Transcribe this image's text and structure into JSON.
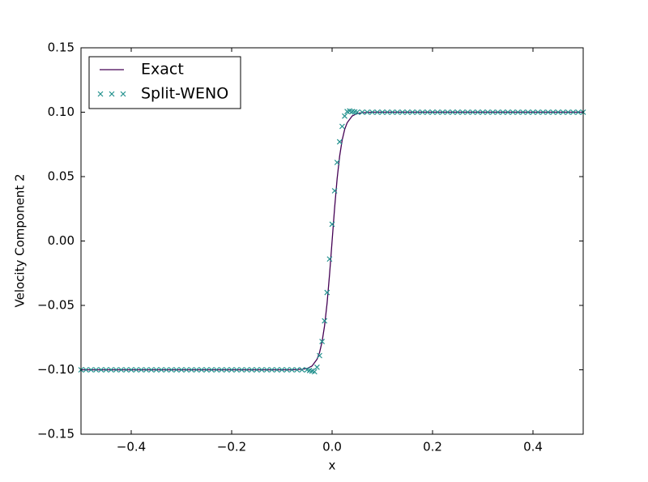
{
  "chart_data": {
    "type": "line",
    "xlabel": "x",
    "ylabel": "Velocity Component 2",
    "xlim": [
      -0.5,
      0.5
    ],
    "ylim": [
      -0.15,
      0.15
    ],
    "xticks": [
      {
        "value": -0.4,
        "label": "−0.4"
      },
      {
        "value": -0.2,
        "label": "−0.2"
      },
      {
        "value": 0,
        "label": "0.0"
      },
      {
        "value": 0.2,
        "label": "0.2"
      },
      {
        "value": 0.4,
        "label": "0.4"
      }
    ],
    "yticks": [
      {
        "value": -0.15,
        "label": "−0.15"
      },
      {
        "value": -0.1,
        "label": "−0.10"
      },
      {
        "value": -0.05,
        "label": "−0.05"
      },
      {
        "value": 0,
        "label": "0.00"
      },
      {
        "value": 0.05,
        "label": "0.05"
      },
      {
        "value": 0.1,
        "label": "0.10"
      },
      {
        "value": 0.15,
        "label": "0.15"
      }
    ],
    "grid": false,
    "legend": "upper left",
    "series": [
      {
        "name": "Exact",
        "type": "line",
        "color": "#440154",
        "x": [
          -0.5,
          -0.1,
          -0.08,
          -0.06,
          -0.05,
          -0.04,
          -0.03,
          -0.025,
          -0.02,
          -0.015,
          -0.01,
          -0.005,
          0,
          0.005,
          0.01,
          0.015,
          0.02,
          0.025,
          0.03,
          0.04,
          0.05,
          0.06,
          0.08,
          0.1,
          0.5
        ],
        "values": [
          -0.1,
          -0.1,
          -0.1,
          -0.0996,
          -0.099,
          -0.0971,
          -0.0918,
          -0.0866,
          -0.0783,
          -0.0658,
          -0.0483,
          -0.0257,
          0,
          0.0257,
          0.0483,
          0.0658,
          0.0783,
          0.0866,
          0.0918,
          0.0971,
          0.099,
          0.0996,
          0.1,
          0.1,
          0.1
        ]
      },
      {
        "name": "Split-WENO",
        "type": "scatter",
        "color": "#21908d",
        "x": [
          -0.5,
          -0.49,
          -0.48,
          -0.47,
          -0.46,
          -0.45,
          -0.44,
          -0.43,
          -0.42,
          -0.41,
          -0.4,
          -0.39,
          -0.38,
          -0.37,
          -0.36,
          -0.35,
          -0.34,
          -0.33,
          -0.32,
          -0.31,
          -0.3,
          -0.29,
          -0.28,
          -0.27,
          -0.26,
          -0.25,
          -0.24,
          -0.23,
          -0.22,
          -0.21,
          -0.2,
          -0.19,
          -0.18,
          -0.17,
          -0.16,
          -0.15,
          -0.14,
          -0.13,
          -0.12,
          -0.11,
          -0.1,
          -0.09,
          -0.08,
          -0.07,
          -0.06,
          -0.05,
          -0.045,
          -0.04,
          -0.035,
          -0.03,
          -0.025,
          -0.02,
          -0.015,
          -0.01,
          -0.005,
          0,
          0.005,
          0.01,
          0.015,
          0.02,
          0.025,
          0.03,
          0.035,
          0.04,
          0.045,
          0.05,
          0.06,
          0.07,
          0.08,
          0.09,
          0.1,
          0.11,
          0.12,
          0.13,
          0.14,
          0.15,
          0.16,
          0.17,
          0.18,
          0.19,
          0.2,
          0.21,
          0.22,
          0.23,
          0.24,
          0.25,
          0.26,
          0.27,
          0.28,
          0.29,
          0.3,
          0.31,
          0.32,
          0.33,
          0.34,
          0.35,
          0.36,
          0.37,
          0.38,
          0.39,
          0.4,
          0.41,
          0.42,
          0.43,
          0.44,
          0.45,
          0.46,
          0.47,
          0.48,
          0.49,
          0.5
        ],
        "values": [
          -0.1,
          -0.1,
          -0.1,
          -0.1,
          -0.1,
          -0.1,
          -0.1,
          -0.1,
          -0.1,
          -0.1,
          -0.1,
          -0.1,
          -0.1,
          -0.1,
          -0.1,
          -0.1,
          -0.1,
          -0.1,
          -0.1,
          -0.1,
          -0.1,
          -0.1,
          -0.1,
          -0.1,
          -0.1,
          -0.1,
          -0.1,
          -0.1,
          -0.1,
          -0.1,
          -0.1,
          -0.1,
          -0.1,
          -0.1,
          -0.1,
          -0.1,
          -0.1,
          -0.1,
          -0.1,
          -0.1,
          -0.1,
          -0.1,
          -0.1,
          -0.1,
          -0.1,
          -0.1,
          -0.1005,
          -0.101,
          -0.1015,
          -0.098,
          -0.089,
          -0.078,
          -0.062,
          -0.04,
          -0.014,
          0.013,
          0.039,
          0.061,
          0.077,
          0.089,
          0.097,
          0.1005,
          0.101,
          0.1005,
          0.1002,
          0.1,
          0.1,
          0.1,
          0.1,
          0.1,
          0.1,
          0.1,
          0.1,
          0.1,
          0.1,
          0.1,
          0.1,
          0.1,
          0.1,
          0.1,
          0.1,
          0.1,
          0.1,
          0.1,
          0.1,
          0.1,
          0.1,
          0.1,
          0.1,
          0.1,
          0.1,
          0.1,
          0.1,
          0.1,
          0.1,
          0.1,
          0.1,
          0.1,
          0.1,
          0.1,
          0.1,
          0.1,
          0.1,
          0.1,
          0.1,
          0.1,
          0.1,
          0.1,
          0.1,
          0.1,
          0.1
        ]
      }
    ]
  }
}
